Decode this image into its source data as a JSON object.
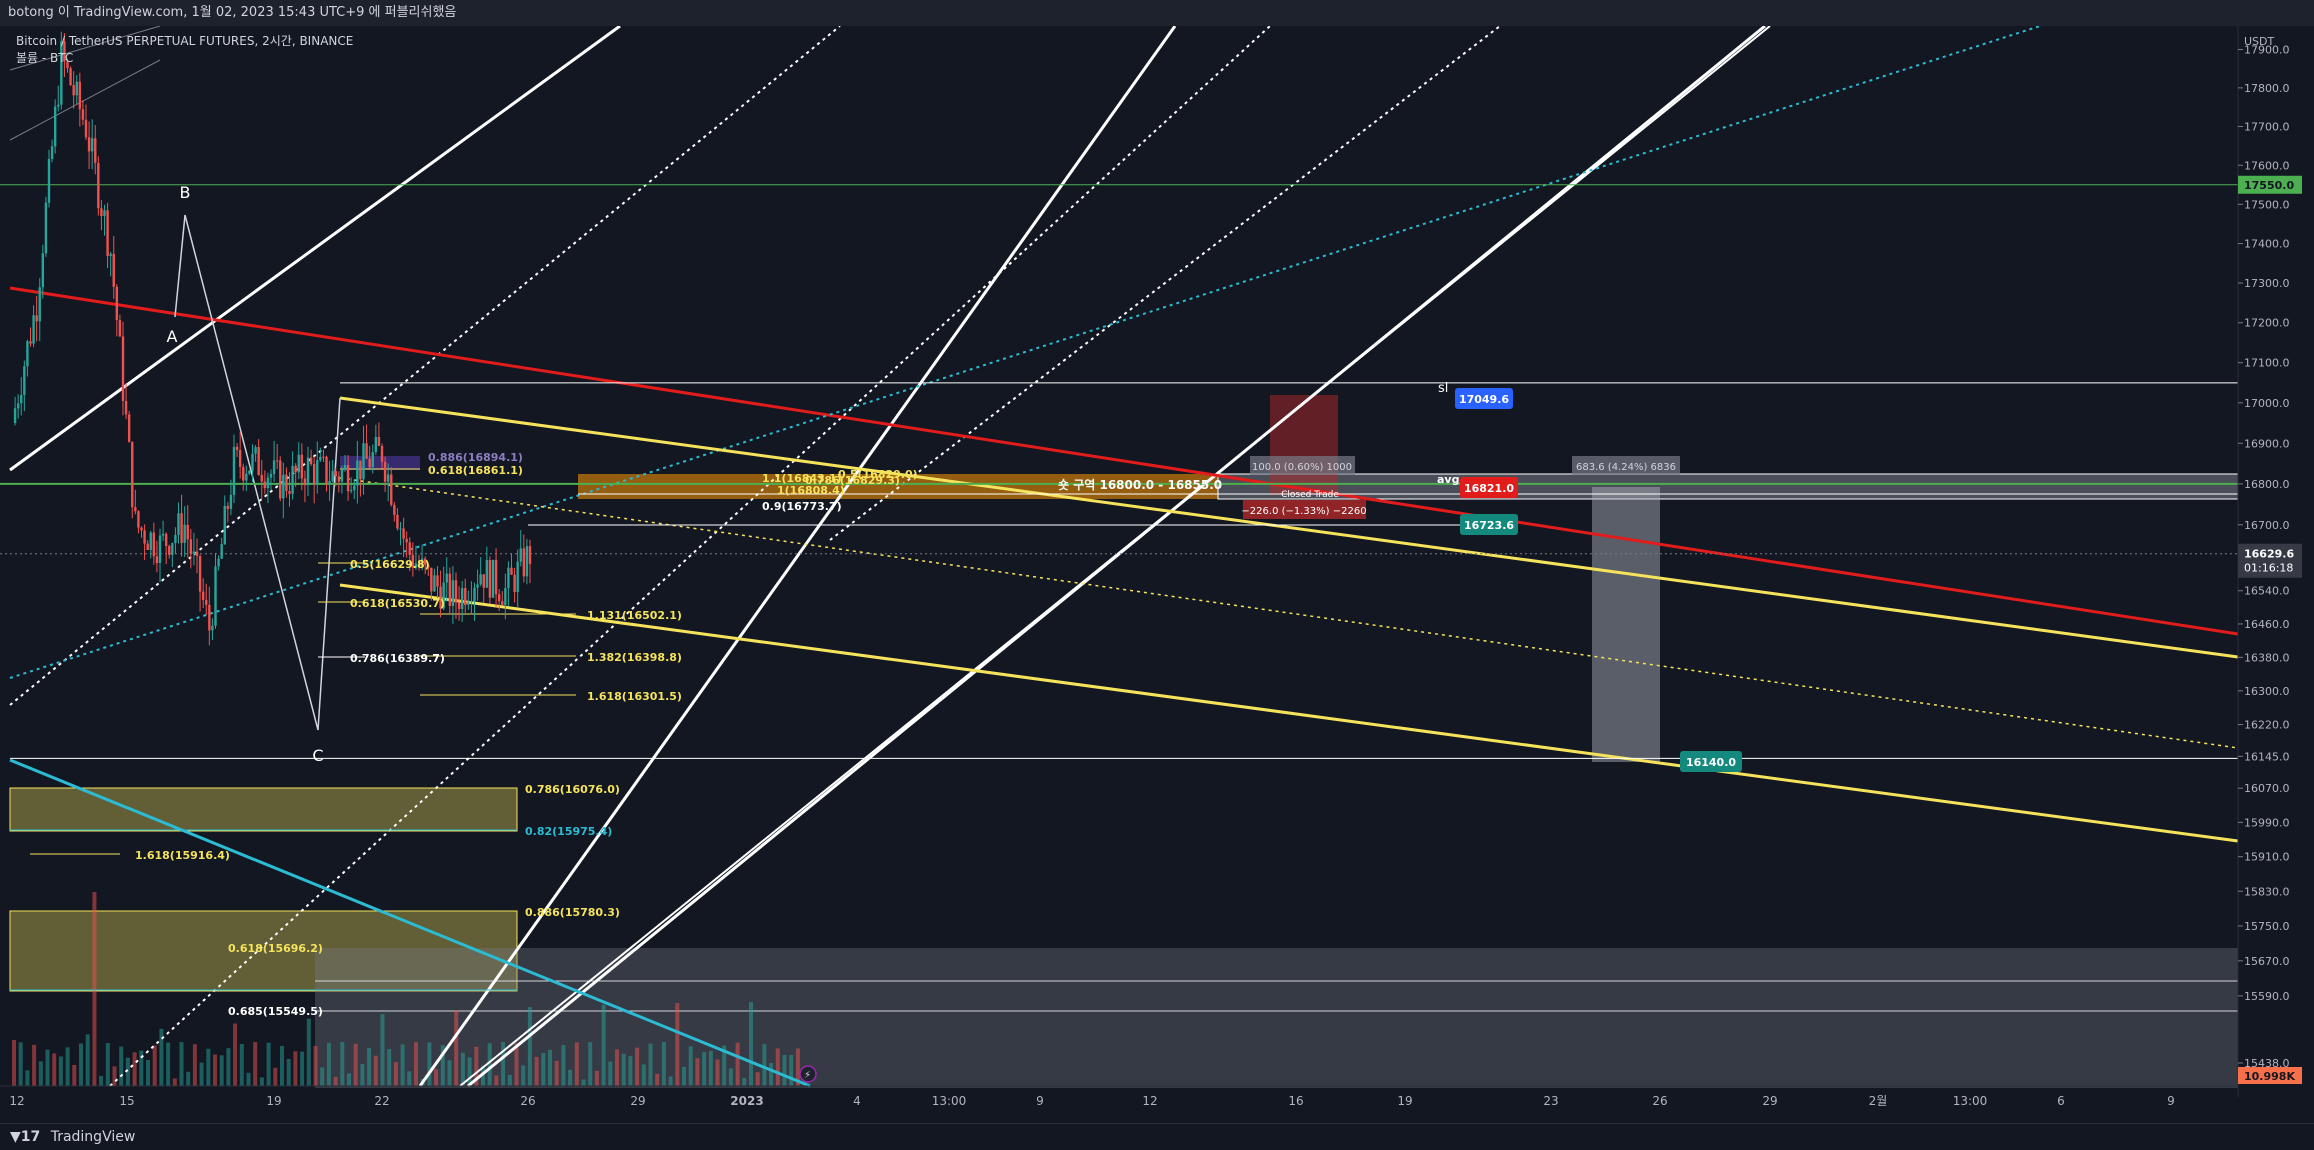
{
  "header": {
    "publish_line": "botong 이 TradingView.com, 1월 02, 2023 15:43 UTC+9 에 퍼블리쉬했음"
  },
  "chart_header": {
    "symbol_line": "Bitcoin / TetherUS PERPETUAL FUTURES, 2시간, BINANCE",
    "volume_line": "볼륨 - BTC"
  },
  "footer": {
    "brand_icon": "tradingview-logo-icon",
    "brand_label": "TradingView"
  },
  "colors": {
    "background": "#131722",
    "white_channel": "#ffffff",
    "yellow_channel": "#f5e35c",
    "red_trend": "#e21b1b",
    "cyan_trend": "#2bbcd4",
    "green_level": "#4caf50",
    "up_candle": "#26a69a",
    "down_candle": "#ef5350"
  },
  "chart_data": {
    "type": "candlestick",
    "title": "Bitcoin / TetherUS PERPETUAL FUTURES, 2시간, BINANCE",
    "y_axis": {
      "unit": "USDT",
      "scale": "log",
      "ticks": [
        17900.0,
        17800.0,
        17700.0,
        17600.0,
        17500.0,
        17400.0,
        17300.0,
        17200.0,
        17100.0,
        17000.0,
        16900.0,
        16800.0,
        16700.0,
        16540.0,
        16460.0,
        16380.0,
        16300.0,
        16220.0,
        16145.0,
        16070.0,
        15990.0,
        15910.0,
        15830.0,
        15750.0,
        15670.0,
        15590.0,
        15438.0
      ],
      "ylim": [
        15375,
        18000
      ]
    },
    "x_axis": {
      "ticks": [
        "12",
        "15",
        "19",
        "22",
        "26",
        "29",
        "2023",
        "4",
        "13:00",
        "9",
        "12",
        "16",
        "19",
        "23",
        "26",
        "29",
        "2월",
        "13:00",
        "6",
        "9"
      ]
    },
    "price_path": [
      {
        "date": "2022-12-12",
        "price": 16950
      },
      {
        "date": "2022-12-13",
        "price": 17250
      },
      {
        "date": "2022-12-14",
        "price": 17880
      },
      {
        "date": "2022-12-15",
        "price": 17700
      },
      {
        "date": "2022-12-16",
        "price": 17380
      },
      {
        "date": "2022-12-17",
        "price": 16700
      },
      {
        "date": "2022-12-18",
        "price": 16650
      },
      {
        "date": "2022-12-19",
        "price": 16700
      },
      {
        "date": "2022-12-20",
        "price": 16450
      },
      {
        "date": "2022-12-21",
        "price": 16850
      },
      {
        "date": "2022-12-22",
        "price": 16850
      },
      {
        "date": "2022-12-23",
        "price": 16800
      },
      {
        "date": "2022-12-24",
        "price": 16840
      },
      {
        "date": "2022-12-25",
        "price": 16820
      },
      {
        "date": "2022-12-26",
        "price": 16840
      },
      {
        "date": "2022-12-27",
        "price": 16880
      },
      {
        "date": "2022-12-28",
        "price": 16640
      },
      {
        "date": "2022-12-29",
        "price": 16560
      },
      {
        "date": "2022-12-30",
        "price": 16520
      },
      {
        "date": "2022-12-31",
        "price": 16590
      },
      {
        "date": "2023-01-01",
        "price": 16540
      },
      {
        "date": "2023-01-02",
        "price": 16629.6
      }
    ],
    "wave_labels": [
      {
        "label": "A",
        "date": "2022-12-16",
        "price": 17250
      },
      {
        "label": "B",
        "date": "2022-12-16",
        "price": 17520
      },
      {
        "label": "C",
        "date": "2022-12-20",
        "price": 16240
      }
    ],
    "horizontal_levels": [
      {
        "price": 17550.0,
        "color": "#4caf50"
      },
      {
        "price": 16800.0,
        "color": "#4caf50"
      },
      {
        "price": 17049.6,
        "color": "#ffffff"
      },
      {
        "price": 16140.0,
        "color": "#ffffff"
      }
    ],
    "fib_labels": [
      {
        "text": "0.5(16629.8)",
        "color": "#f5e35c"
      },
      {
        "text": "0.618(16530.7)",
        "color": "#f5e35c"
      },
      {
        "text": "0.786(16389.7)",
        "color": "#ffffff"
      },
      {
        "text": "0.618(16861.1)",
        "color": "#f5e35c"
      },
      {
        "text": "0.886(16894.1)",
        "color": "#8e7cc3"
      },
      {
        "text": "1.1(16843.1)",
        "color": "#f5e35c"
      },
      {
        "text": "1(16808.4)",
        "color": "#f5e35c"
      },
      {
        "text": "0.9(16773.7)",
        "color": "#ffffff"
      },
      {
        "text": "0.786(16829.3)",
        "color": "#f5e35c"
      },
      {
        "text": "0.5(16829.0)",
        "color": "#f5e35c"
      },
      {
        "text": "1.131(16502.1)",
        "color": "#f5e35c"
      },
      {
        "text": "1.382(16398.8)",
        "color": "#f5e35c"
      },
      {
        "text": "1.618(16301.5)",
        "color": "#f5e35c"
      },
      {
        "text": "0.786(16076.0)",
        "color": "#f5e35c"
      },
      {
        "text": "0.82(15975.4)",
        "color": "#2bbcd4"
      },
      {
        "text": "1.618(15916.4)",
        "color": "#f5e35c"
      },
      {
        "text": "0.886(15780.3)",
        "color": "#f5e35c"
      },
      {
        "text": "0.618(15696.2)",
        "color": "#f5e35c"
      },
      {
        "text": "0.685(15549.5)",
        "color": "#ffffff"
      }
    ],
    "zone_label": "숏 구역 16800.0 - 16855.0",
    "position_labels": {
      "target_box": "100.0 (0.60%) 1000",
      "closed_trade": "Closed Trade",
      "stop_box": "−226.0 (−1.33%) −2260",
      "long_box": "683.6 (4.24%) 6836"
    },
    "markers": {
      "sl_text": "sl",
      "avg_text": "avg"
    },
    "price_tags": [
      {
        "value": "17049.6",
        "color": "#2962ff"
      },
      {
        "value": "16821.0",
        "color": "#e21b1b"
      },
      {
        "value": "16723.6",
        "color": "#138a7d"
      },
      {
        "value": "16140.0",
        "color": "#138a7d"
      }
    ],
    "axis_badges": {
      "green_level": "17550.0",
      "current_price": "16629.6",
      "countdown": "01:16:18",
      "volume": "10.998K"
    },
    "legend": "none",
    "grid": false
  }
}
